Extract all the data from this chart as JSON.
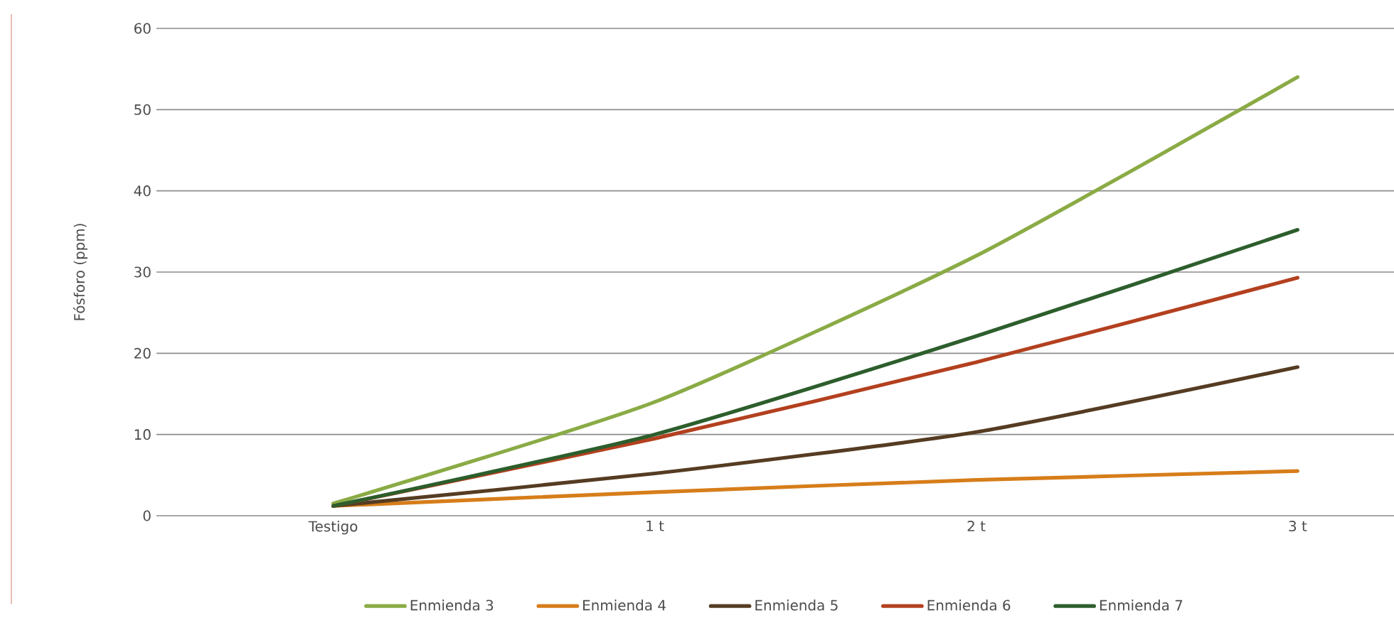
{
  "chart_data": {
    "type": "line",
    "ylabel": "Fósforo (ppm)",
    "categories": [
      "Testigo",
      "1 t",
      "2 t",
      "3 t"
    ],
    "series": [
      {
        "name": "Enmienda 3",
        "color": "#8aab45",
        "values": [
          1.5,
          14,
          32,
          54
        ]
      },
      {
        "name": "Enmienda 4",
        "color": "#d67d1a",
        "values": [
          1.2,
          2.9,
          4.4,
          5.5
        ]
      },
      {
        "name": "Enmienda 5",
        "color": "#553c22",
        "values": [
          1.2,
          5.2,
          10.3,
          18.3
        ]
      },
      {
        "name": "Enmienda 6",
        "color": "#b3401f",
        "values": [
          1.2,
          9.5,
          18.9,
          29.3
        ]
      },
      {
        "name": "Enmienda 7",
        "color": "#2d5e2c",
        "values": [
          1.2,
          10,
          22.1,
          35.2
        ]
      }
    ],
    "ylim": [
      0,
      60
    ],
    "yticks": [
      0,
      10,
      20,
      30,
      40,
      50,
      60
    ],
    "grid": "y",
    "legend": "bottom",
    "marker": "none",
    "line_style": "solid"
  }
}
